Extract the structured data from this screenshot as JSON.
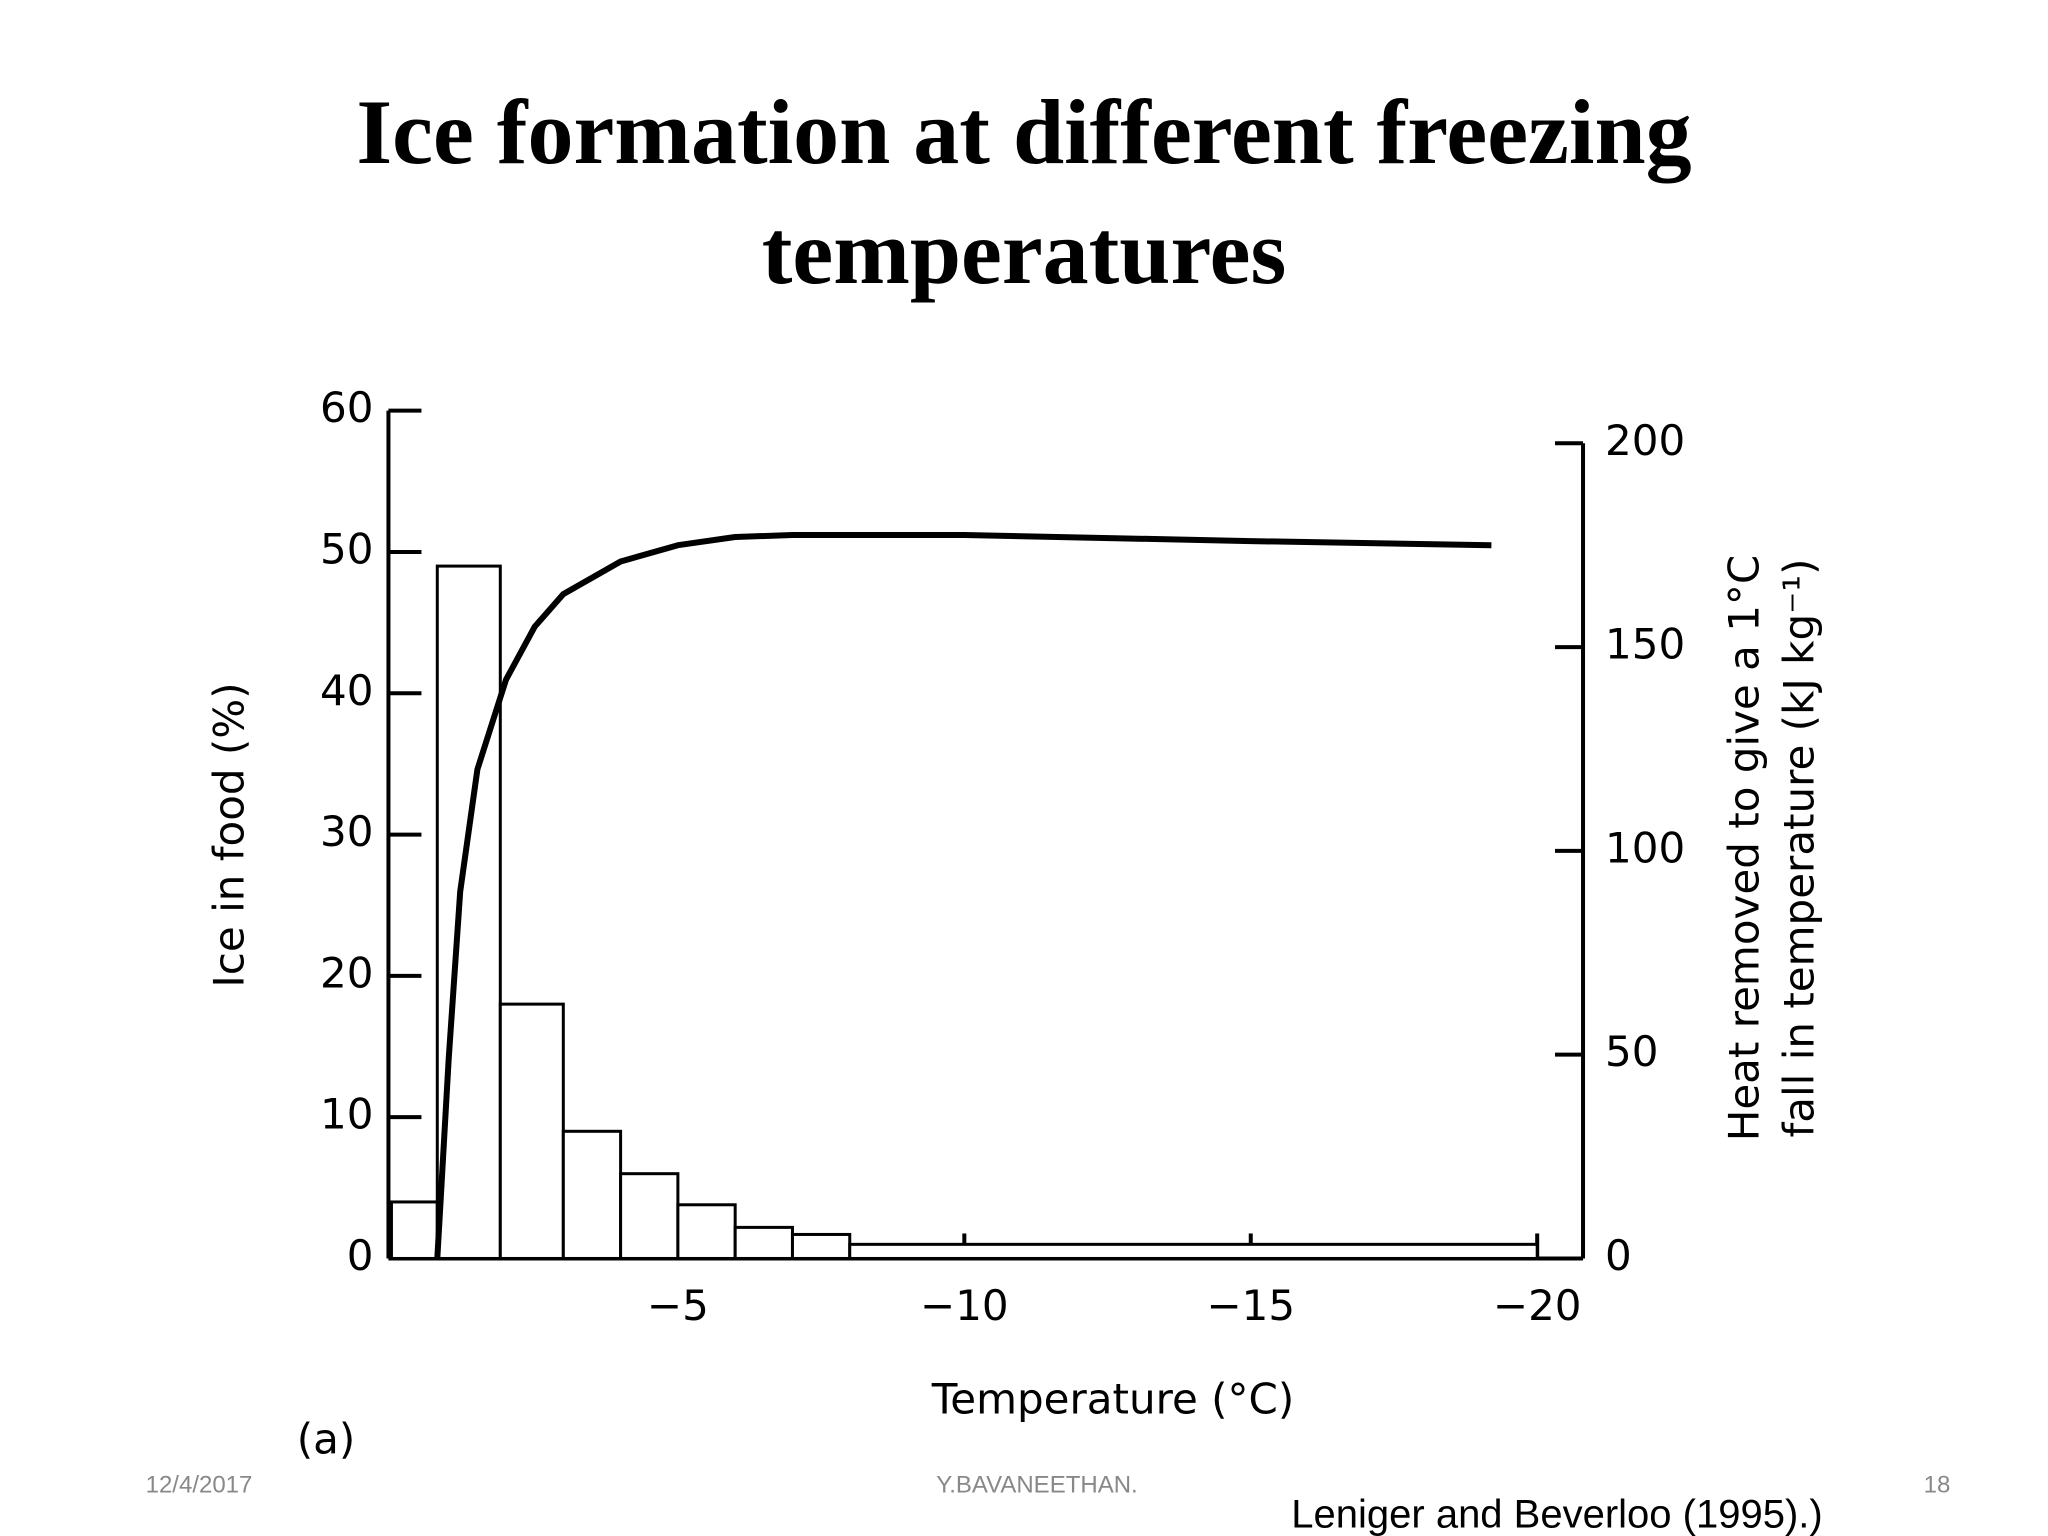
{
  "slide": {
    "title": "Ice formation at different freezing temperatures",
    "date": "12/4/2017",
    "author": "Y.BAVANEETHAN.",
    "page": "18",
    "source": "Leniger and Beverloo (1995).)"
  },
  "chart_data": {
    "type": "histogram",
    "xlabel": "Temperature (°C)",
    "ylabel": "Ice in food (%)",
    "y2label": [
      "Heat removed to give a 1°C",
      "fall in temperature (kJ kg⁻¹)"
    ],
    "panel_label": "(a)",
    "bins": [
      0,
      -0.8,
      -1.9,
      -3,
      -4,
      -5,
      -6,
      -7,
      -8,
      -20
    ],
    "counts": [
      4,
      49,
      18,
      9,
      6,
      3.8,
      2.2,
      1.7,
      1
    ],
    "color": "#ffffff",
    "edge_color": "#000000",
    "series": [
      {
        "axis": "y2",
        "color": "#000000",
        "x": [
          -0.8,
          -1,
          -1.2,
          -1.5,
          -2,
          -2.5,
          -3,
          -4,
          -5,
          -6,
          -7,
          -10,
          -15,
          -19.2
        ],
        "values": [
          0,
          49,
          90,
          120,
          142,
          155,
          163,
          171,
          175,
          177,
          177.5,
          177.5,
          176,
          175
        ]
      }
    ],
    "xlim": [
      0,
      -20.8
    ],
    "xticks": [
      {
        "value": -5,
        "label": "−5"
      },
      {
        "value": -10,
        "label": "−10"
      },
      {
        "value": -15,
        "label": "−15"
      },
      {
        "value": -20,
        "label": "−20"
      }
    ],
    "ylim": [
      0,
      60
    ],
    "yticks": [
      0,
      10,
      20,
      30,
      40,
      50,
      60
    ],
    "y2lim": [
      0,
      208
    ],
    "y2ticks": [
      0,
      50,
      100,
      150,
      200
    ]
  }
}
